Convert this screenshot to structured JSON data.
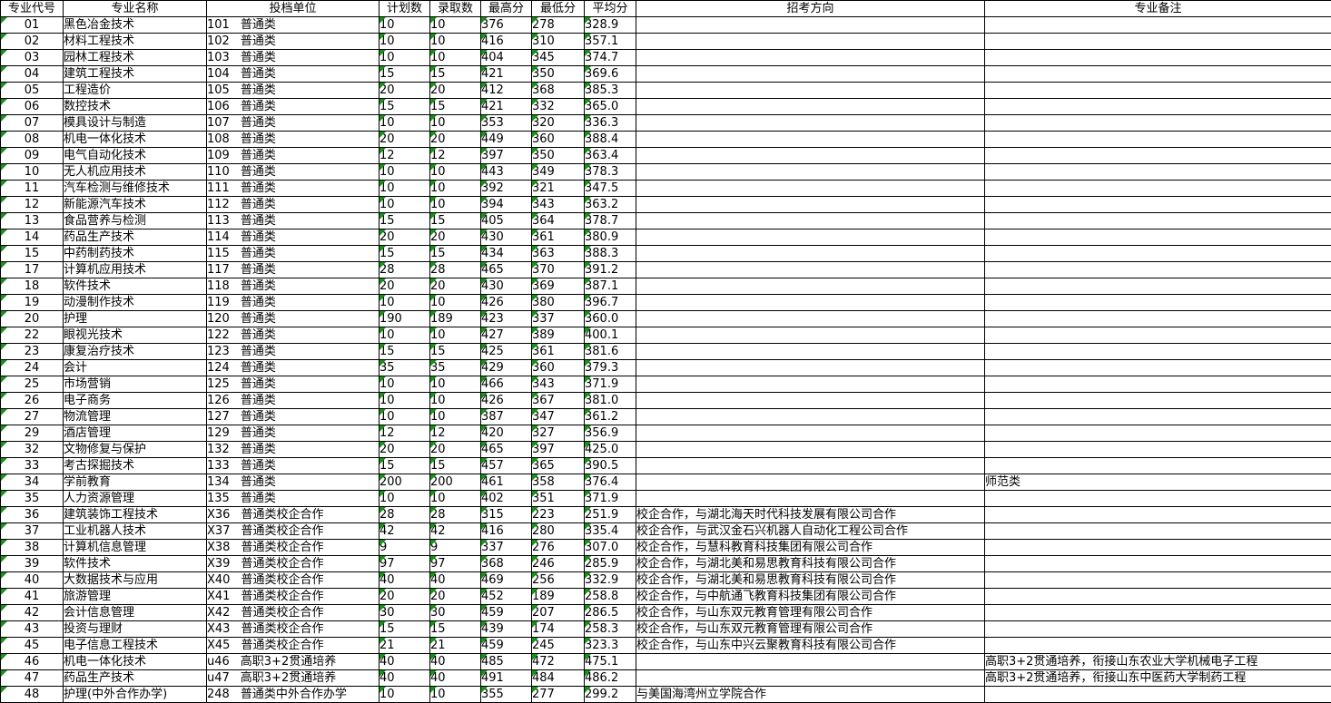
{
  "colors": {
    "grid_border": "#000000",
    "error_triangle": "#149414",
    "background": "#ffffff"
  },
  "table": {
    "headers": [
      "专业代号",
      "专业名称",
      "投档单位",
      "计划数",
      "录取数",
      "最高分",
      "最低分",
      "平均分",
      "招考方向",
      "专业备注"
    ],
    "rows": [
      {
        "code": "01",
        "name": "黑色冶金技术",
        "unit_code": "101",
        "unit_name": "普通类",
        "plan": "10",
        "admitted": "10",
        "max": "376",
        "min": "278",
        "avg": "328.9",
        "direction": "",
        "remark": ""
      },
      {
        "code": "02",
        "name": "材料工程技术",
        "unit_code": "102",
        "unit_name": "普通类",
        "plan": "10",
        "admitted": "10",
        "max": "416",
        "min": "310",
        "avg": "357.1",
        "direction": "",
        "remark": ""
      },
      {
        "code": "03",
        "name": "园林工程技术",
        "unit_code": "103",
        "unit_name": "普通类",
        "plan": "10",
        "admitted": "10",
        "max": "404",
        "min": "345",
        "avg": "374.7",
        "direction": "",
        "remark": ""
      },
      {
        "code": "04",
        "name": "建筑工程技术",
        "unit_code": "104",
        "unit_name": "普通类",
        "plan": "15",
        "admitted": "15",
        "max": "421",
        "min": "350",
        "avg": "369.6",
        "direction": "",
        "remark": ""
      },
      {
        "code": "05",
        "name": "工程造价",
        "unit_code": "105",
        "unit_name": "普通类",
        "plan": "20",
        "admitted": "20",
        "max": "412",
        "min": "368",
        "avg": "385.3",
        "direction": "",
        "remark": ""
      },
      {
        "code": "06",
        "name": "数控技术",
        "unit_code": "106",
        "unit_name": "普通类",
        "plan": "15",
        "admitted": "15",
        "max": "421",
        "min": "332",
        "avg": "365.0",
        "direction": "",
        "remark": ""
      },
      {
        "code": "07",
        "name": "模具设计与制造",
        "unit_code": "107",
        "unit_name": "普通类",
        "plan": "10",
        "admitted": "10",
        "max": "353",
        "min": "320",
        "avg": "336.3",
        "direction": "",
        "remark": ""
      },
      {
        "code": "08",
        "name": "机电一体化技术",
        "unit_code": "108",
        "unit_name": "普通类",
        "plan": "20",
        "admitted": "20",
        "max": "449",
        "min": "360",
        "avg": "388.4",
        "direction": "",
        "remark": ""
      },
      {
        "code": "09",
        "name": "电气自动化技术",
        "unit_code": "109",
        "unit_name": "普通类",
        "plan": "12",
        "admitted": "12",
        "max": "397",
        "min": "350",
        "avg": "363.4",
        "direction": "",
        "remark": ""
      },
      {
        "code": "10",
        "name": "无人机应用技术",
        "unit_code": "110",
        "unit_name": "普通类",
        "plan": "10",
        "admitted": "10",
        "max": "443",
        "min": "349",
        "avg": "378.3",
        "direction": "",
        "remark": ""
      },
      {
        "code": "11",
        "name": "汽车检测与维修技术",
        "unit_code": "111",
        "unit_name": "普通类",
        "plan": "10",
        "admitted": "10",
        "max": "392",
        "min": "321",
        "avg": "347.5",
        "direction": "",
        "remark": ""
      },
      {
        "code": "12",
        "name": "新能源汽车技术",
        "unit_code": "112",
        "unit_name": "普通类",
        "plan": "10",
        "admitted": "10",
        "max": "394",
        "min": "343",
        "avg": "363.2",
        "direction": "",
        "remark": ""
      },
      {
        "code": "13",
        "name": "食品营养与检测",
        "unit_code": "113",
        "unit_name": "普通类",
        "plan": "15",
        "admitted": "15",
        "max": "405",
        "min": "364",
        "avg": "378.7",
        "direction": "",
        "remark": ""
      },
      {
        "code": "14",
        "name": "药品生产技术",
        "unit_code": "114",
        "unit_name": "普通类",
        "plan": "20",
        "admitted": "20",
        "max": "430",
        "min": "361",
        "avg": "380.9",
        "direction": "",
        "remark": ""
      },
      {
        "code": "15",
        "name": "中药制药技术",
        "unit_code": "115",
        "unit_name": "普通类",
        "plan": "15",
        "admitted": "15",
        "max": "434",
        "min": "363",
        "avg": "388.3",
        "direction": "",
        "remark": ""
      },
      {
        "code": "17",
        "name": "计算机应用技术",
        "unit_code": "117",
        "unit_name": "普通类",
        "plan": "28",
        "admitted": "28",
        "max": "465",
        "min": "370",
        "avg": "391.2",
        "direction": "",
        "remark": ""
      },
      {
        "code": "18",
        "name": "软件技术",
        "unit_code": "118",
        "unit_name": "普通类",
        "plan": "20",
        "admitted": "20",
        "max": "430",
        "min": "369",
        "avg": "387.1",
        "direction": "",
        "remark": ""
      },
      {
        "code": "19",
        "name": "动漫制作技术",
        "unit_code": "119",
        "unit_name": "普通类",
        "plan": "10",
        "admitted": "10",
        "max": "426",
        "min": "380",
        "avg": "396.7",
        "direction": "",
        "remark": ""
      },
      {
        "code": "20",
        "name": "护理",
        "unit_code": "120",
        "unit_name": "普通类",
        "plan": "190",
        "admitted": "189",
        "max": "423",
        "min": "337",
        "avg": "360.0",
        "direction": "",
        "remark": ""
      },
      {
        "code": "22",
        "name": "眼视光技术",
        "unit_code": "122",
        "unit_name": "普通类",
        "plan": "10",
        "admitted": "10",
        "max": "427",
        "min": "389",
        "avg": "400.1",
        "direction": "",
        "remark": ""
      },
      {
        "code": "23",
        "name": "康复治疗技术",
        "unit_code": "123",
        "unit_name": "普通类",
        "plan": "15",
        "admitted": "15",
        "max": "425",
        "min": "361",
        "avg": "381.6",
        "direction": "",
        "remark": ""
      },
      {
        "code": "24",
        "name": "会计",
        "unit_code": "124",
        "unit_name": "普通类",
        "plan": "35",
        "admitted": "35",
        "max": "429",
        "min": "360",
        "avg": "379.3",
        "direction": "",
        "remark": ""
      },
      {
        "code": "25",
        "name": "市场营销",
        "unit_code": "125",
        "unit_name": "普通类",
        "plan": "10",
        "admitted": "10",
        "max": "466",
        "min": "343",
        "avg": "371.9",
        "direction": "",
        "remark": ""
      },
      {
        "code": "26",
        "name": "电子商务",
        "unit_code": "126",
        "unit_name": "普通类",
        "plan": "10",
        "admitted": "10",
        "max": "426",
        "min": "367",
        "avg": "381.0",
        "direction": "",
        "remark": ""
      },
      {
        "code": "27",
        "name": "物流管理",
        "unit_code": "127",
        "unit_name": "普通类",
        "plan": "10",
        "admitted": "10",
        "max": "387",
        "min": "347",
        "avg": "361.2",
        "direction": "",
        "remark": ""
      },
      {
        "code": "29",
        "name": "酒店管理",
        "unit_code": "129",
        "unit_name": "普通类",
        "plan": "12",
        "admitted": "12",
        "max": "420",
        "min": "327",
        "avg": "356.9",
        "direction": "",
        "remark": ""
      },
      {
        "code": "32",
        "name": "文物修复与保护",
        "unit_code": "132",
        "unit_name": "普通类",
        "plan": "20",
        "admitted": "20",
        "max": "465",
        "min": "397",
        "avg": "425.0",
        "direction": "",
        "remark": ""
      },
      {
        "code": "33",
        "name": "考古探掘技术",
        "unit_code": "133",
        "unit_name": "普通类",
        "plan": "15",
        "admitted": "15",
        "max": "457",
        "min": "365",
        "avg": "390.5",
        "direction": "",
        "remark": ""
      },
      {
        "code": "34",
        "name": "学前教育",
        "unit_code": "134",
        "unit_name": "普通类",
        "plan": "200",
        "admitted": "200",
        "max": "461",
        "min": "358",
        "avg": "376.4",
        "direction": "",
        "remark": "师范类"
      },
      {
        "code": "35",
        "name": "人力资源管理",
        "unit_code": "135",
        "unit_name": "普通类",
        "plan": "10",
        "admitted": "10",
        "max": "402",
        "min": "351",
        "avg": "371.9",
        "direction": "",
        "remark": ""
      },
      {
        "code": "36",
        "name": "建筑装饰工程技术",
        "unit_code": "X36",
        "unit_name": "普通类校企合作",
        "plan": "28",
        "admitted": "28",
        "max": "315",
        "min": "223",
        "avg": "251.9",
        "direction": "校企合作，与湖北海天时代科技发展有限公司合作",
        "remark": ""
      },
      {
        "code": "37",
        "name": "工业机器人技术",
        "unit_code": "X37",
        "unit_name": "普通类校企合作",
        "plan": "42",
        "admitted": "42",
        "max": "416",
        "min": "280",
        "avg": "335.4",
        "direction": "校企合作，与武汉金石兴机器人自动化工程公司合作",
        "remark": ""
      },
      {
        "code": "38",
        "name": "计算机信息管理",
        "unit_code": "X38",
        "unit_name": "普通类校企合作",
        "plan": "9",
        "admitted": "9",
        "max": "337",
        "min": "276",
        "avg": "307.0",
        "direction": "校企合作，与慧科教育科技集团有限公司合作",
        "remark": ""
      },
      {
        "code": "39",
        "name": "软件技术",
        "unit_code": "X39",
        "unit_name": "普通类校企合作",
        "plan": "97",
        "admitted": "97",
        "max": "368",
        "min": "246",
        "avg": "285.9",
        "direction": "校企合作，与湖北美和易思教育科技有限公司合作",
        "remark": ""
      },
      {
        "code": "40",
        "name": "大数据技术与应用",
        "unit_code": "X40",
        "unit_name": "普通类校企合作",
        "plan": "40",
        "admitted": "40",
        "max": "469",
        "min": "256",
        "avg": "332.9",
        "direction": "校企合作，与湖北美和易思教育科技有限公司合作",
        "remark": ""
      },
      {
        "code": "41",
        "name": "旅游管理",
        "unit_code": "X41",
        "unit_name": "普通类校企合作",
        "plan": "20",
        "admitted": "20",
        "max": "452",
        "min": "189",
        "avg": "258.8",
        "direction": "校企合作，与中航通飞教育科技集团有限公司合作",
        "remark": ""
      },
      {
        "code": "42",
        "name": "会计信息管理",
        "unit_code": "X42",
        "unit_name": "普通类校企合作",
        "plan": "30",
        "admitted": "30",
        "max": "459",
        "min": "207",
        "avg": "286.5",
        "direction": "校企合作，与山东双元教育管理有限公司合作",
        "remark": ""
      },
      {
        "code": "43",
        "name": "投资与理财",
        "unit_code": "X43",
        "unit_name": "普通类校企合作",
        "plan": "15",
        "admitted": "15",
        "max": "439",
        "min": "174",
        "avg": "258.3",
        "direction": "校企合作，与山东双元教育管理有限公司合作",
        "remark": ""
      },
      {
        "code": "45",
        "name": "电子信息工程技术",
        "unit_code": "X45",
        "unit_name": "普通类校企合作",
        "plan": "21",
        "admitted": "21",
        "max": "459",
        "min": "245",
        "avg": "323.3",
        "direction": "校企合作，与山东中兴云聚教育科技有限公司合作",
        "remark": ""
      },
      {
        "code": "46",
        "name": "机电一体化技术",
        "unit_code": "u46",
        "unit_name": "高职3+2贯通培养",
        "plan": "40",
        "admitted": "40",
        "max": "485",
        "min": "472",
        "avg": "475.1",
        "direction": "",
        "remark": "高职3+2贯通培养，衔接山东农业大学机械电子工程"
      },
      {
        "code": "47",
        "name": "药品生产技术",
        "unit_code": "u47",
        "unit_name": "高职3+2贯通培养",
        "plan": "40",
        "admitted": "40",
        "max": "491",
        "min": "484",
        "avg": "486.2",
        "direction": "",
        "remark": "高职3+2贯通培养，衔接山东中医药大学制药工程"
      },
      {
        "code": "48",
        "name": "护理(中外合作办学)",
        "unit_code": "248",
        "unit_name": "普通类中外合作办学",
        "plan": "10",
        "admitted": "10",
        "max": "355",
        "min": "277",
        "avg": "299.2",
        "direction": "与美国海湾州立学院合作",
        "remark": ""
      }
    ]
  }
}
